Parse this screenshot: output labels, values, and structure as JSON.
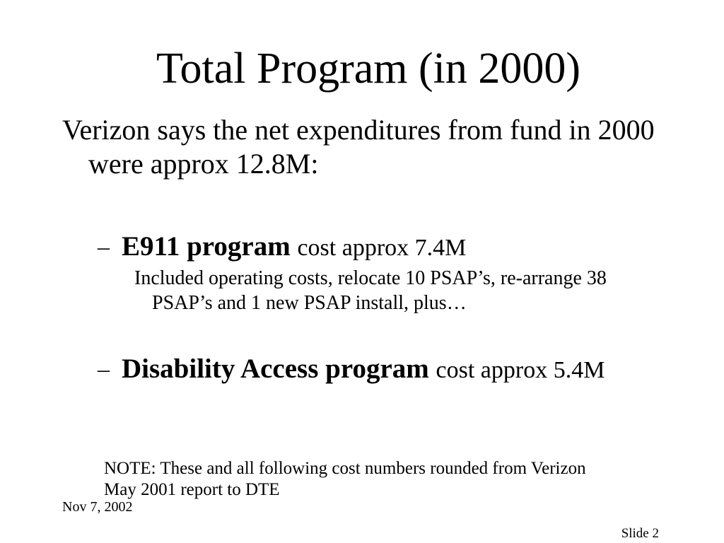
{
  "slide": {
    "title": "Total Program (in 2000)",
    "body": {
      "lines": [
        "Verizon says the net expenditures from fund in 2000",
        "were approx 12.8M:"
      ],
      "items": [
        {
          "bullet": "–",
          "bold": "E911 program",
          "text": "cost approx 7.4M",
          "details": [
            "Included operating costs, relocate 10 PSAP’s, re-arrange 38",
            "PSAP’s and 1 new PSAP install, plus…"
          ]
        },
        {
          "bullet": "–",
          "bold": "Disability Access program",
          "text": "cost approx 5.4M"
        }
      ]
    },
    "note": [
      "NOTE: These and all following cost numbers rounded from Verizon",
      "May 2001 report to DTE"
    ]
  },
  "footer": {
    "date": "Nov 7, 2002",
    "slide_number": "Slide 2"
  },
  "colors": {
    "background": "#ffffff",
    "text": "#000000"
  }
}
